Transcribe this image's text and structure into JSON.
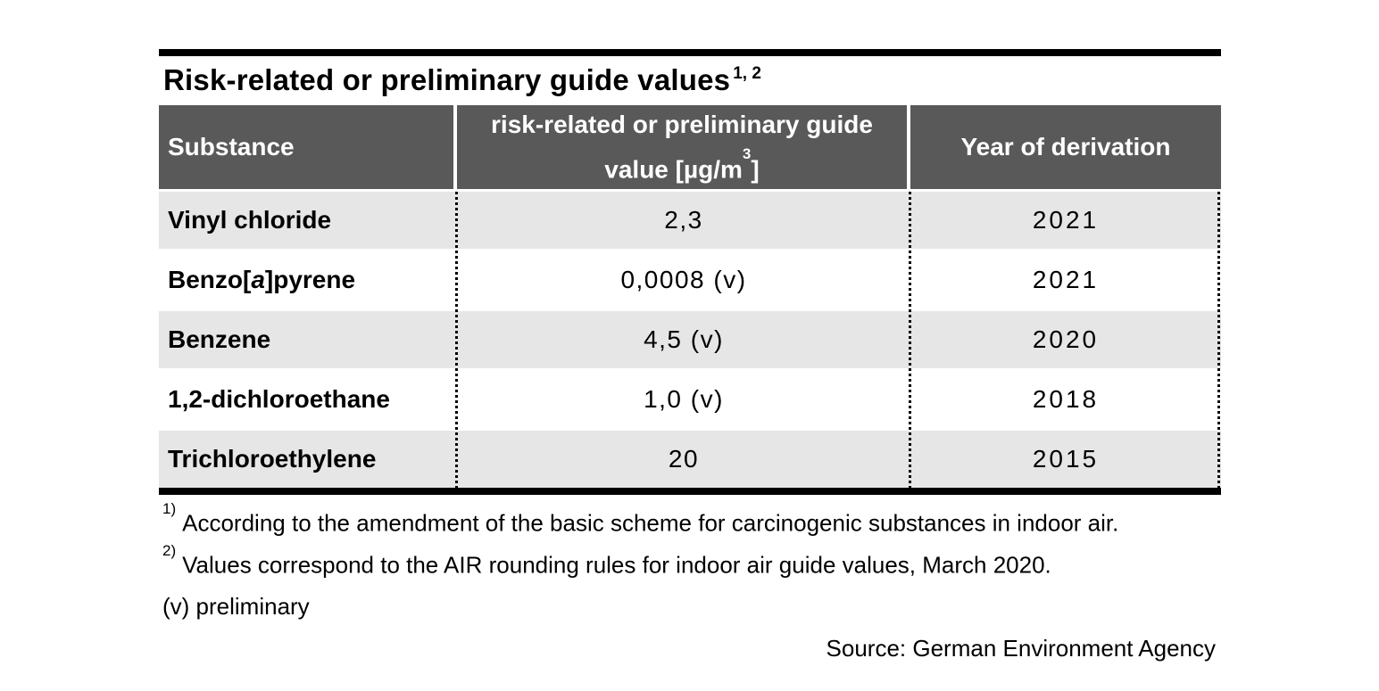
{
  "colors": {
    "header_bg": "#595959",
    "header_text": "#ffffff",
    "row_shade_bg": "#e6e6e6",
    "row_plain_bg": "#ffffff",
    "rule_color": "#000000",
    "text_color": "#000000"
  },
  "title": {
    "text": "Risk-related or preliminary guide values",
    "superscript": "1, 2"
  },
  "table": {
    "header": {
      "substance": "Substance",
      "value_line1": "risk-related or preliminary guide",
      "value_line2_pre": "value [µg/m",
      "value_line2_sup": "3",
      "value_line2_post": "]",
      "year": "Year of derivation"
    },
    "rows": [
      {
        "substance_pre": "Vinyl chloride",
        "substance_italic": "",
        "substance_post": "",
        "value": "2,3",
        "year": "2021"
      },
      {
        "substance_pre": "Benzo[",
        "substance_italic": "a",
        "substance_post": " ]pyrene",
        "value": "0,0008 (v)",
        "year": "2021"
      },
      {
        "substance_pre": "Benzene",
        "substance_italic": "",
        "substance_post": "",
        "value": "4,5 (v)",
        "year": "2020"
      },
      {
        "substance_pre": "1,2-dichloroethane",
        "substance_italic": "",
        "substance_post": "",
        "value": "1,0 (v)",
        "year": "2018"
      },
      {
        "substance_pre": "Trichloroethylene",
        "substance_italic": "",
        "substance_post": "",
        "value": "20",
        "year": "2015"
      }
    ]
  },
  "footnotes": [
    {
      "marker": "1)",
      "text": "According to the amendment of the basic scheme for carcinogenic substances in indoor air."
    },
    {
      "marker": "2)",
      "text": "Values correspond to the AIR rounding rules for indoor air guide values, March 2020."
    },
    {
      "marker": "",
      "text": "(v) preliminary"
    }
  ],
  "source": "Source: German Environment Agency"
}
